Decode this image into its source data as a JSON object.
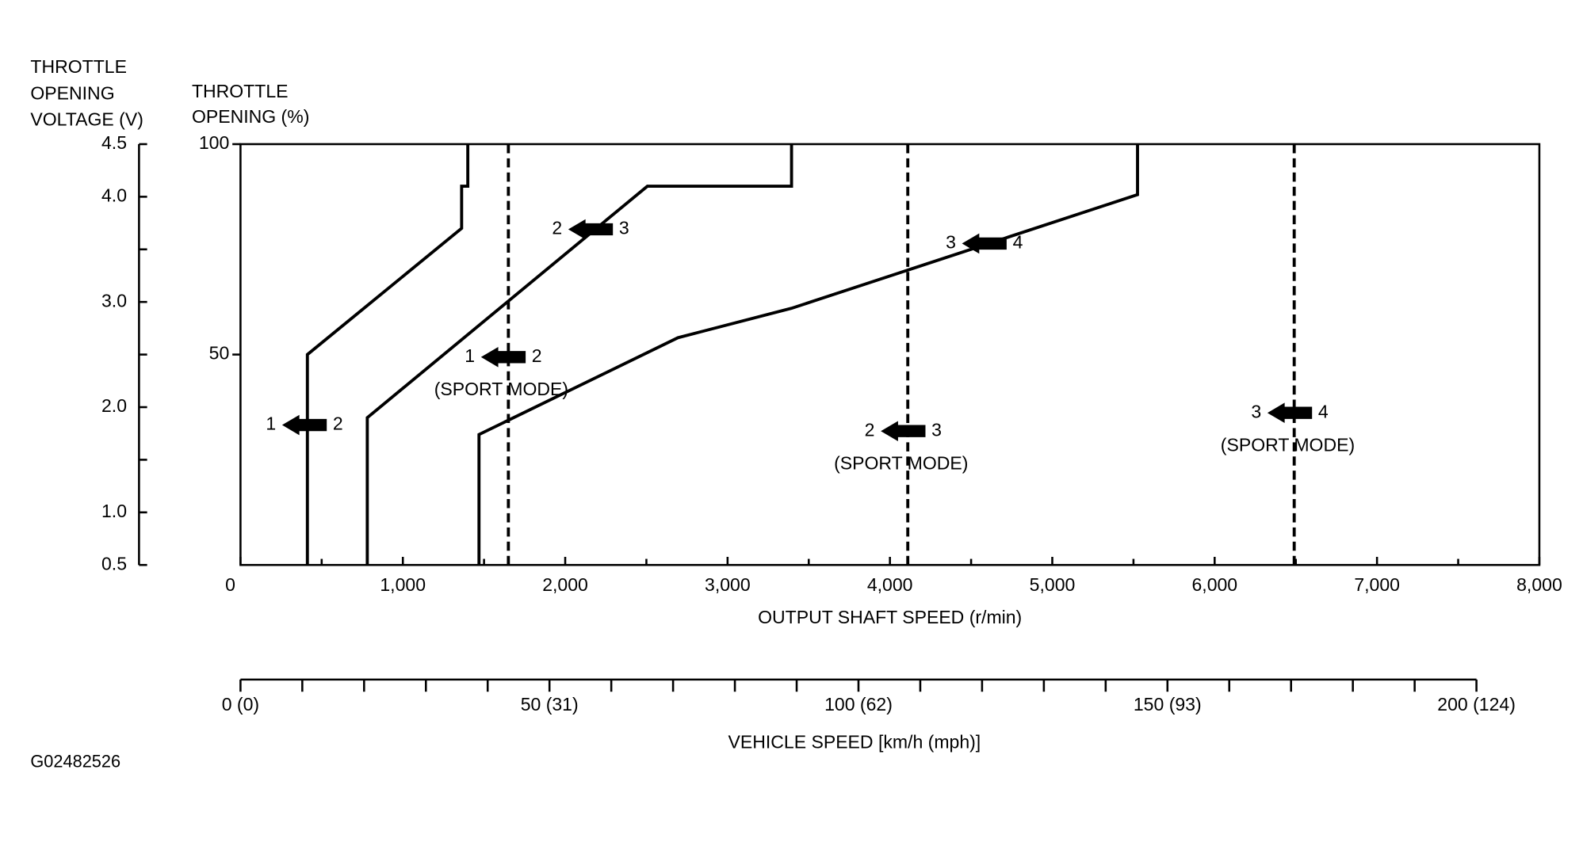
{
  "chart_data": {
    "type": "line",
    "y_title_left": [
      "THROTTLE",
      "OPENING",
      "VOLTAGE (V)"
    ],
    "y_title": [
      "THROTTLE",
      "OPENING (%)"
    ],
    "x_title": "OUTPUT SHAFT SPEED (r/min)",
    "x2_title": "VEHICLE SPEED [km/h (mph)]",
    "figure_id": "G02482526",
    "xlim": [
      0,
      8000
    ],
    "xticks": [
      0,
      {
        "value": 1000,
        "label": "1,000"
      },
      {
        "value": 2000,
        "label": "2,000"
      },
      {
        "value": 3000,
        "label": "3,000"
      },
      {
        "value": 4000,
        "label": "4,000"
      },
      {
        "value": 5000,
        "label": "5,000"
      },
      {
        "value": 6000,
        "label": "6,000"
      },
      {
        "value": 7000,
        "label": "7,000"
      },
      {
        "value": 8000,
        "label": "8,000"
      }
    ],
    "xminorticks": [
      500,
      1500,
      2500,
      3500,
      4500,
      5500,
      6500,
      7500
    ],
    "ylim": [
      0,
      100
    ],
    "yticks": [
      50,
      100
    ],
    "vlim": [
      0.5,
      4.5
    ],
    "vticks": [
      0.5,
      {
        "value": 1,
        "label": "1.0"
      },
      {
        "value": 2,
        "label": "2.0"
      },
      {
        "value": 3,
        "label": "3.0"
      },
      {
        "value": 4,
        "label": "4.0"
      },
      4.5
    ],
    "vminorticks": [
      1.5,
      2.5,
      3.5
    ],
    "x2lim": [
      0,
      200
    ],
    "x2ticks": [
      {
        "value": 0,
        "label": "0 (0)"
      },
      {
        "value": 50,
        "label": "50 (31)"
      },
      {
        "value": 100,
        "label": "100 (62)"
      },
      {
        "value": 150,
        "label": "150 (93)"
      },
      {
        "value": 200,
        "label": "200 (124)"
      }
    ],
    "x2minorticks": [
      10,
      20,
      30,
      40,
      60,
      70,
      80,
      90,
      110,
      120,
      130,
      140,
      160,
      170,
      180,
      190
    ],
    "series": [
      {
        "from": "1",
        "to": "2",
        "color": "#000000",
        "style": "solid",
        "x": [
          412,
          412,
          1362,
          1362,
          1400,
          1400
        ],
        "values": [
          0,
          50,
          80,
          90,
          90,
          100
        ]
      },
      {
        "from": "2",
        "to": "3",
        "color": "#000000",
        "style": "solid",
        "x": [
          781,
          781,
          2506,
          3394,
          3394
        ],
        "values": [
          0,
          35,
          90,
          90,
          100
        ]
      },
      {
        "from": "3",
        "to": "4",
        "color": "#000000",
        "style": "solid",
        "x": [
          1469,
          1469,
          2694,
          3394,
          5525,
          5525
        ],
        "values": [
          0,
          31,
          54,
          61,
          88,
          100
        ]
      },
      {
        "from": "1",
        "to": "2",
        "note": "(SPORT MODE)",
        "color": "#000000",
        "style": "dashed",
        "x": [
          1650,
          1650
        ],
        "values": [
          0,
          100
        ]
      },
      {
        "from": "2",
        "to": "3",
        "note": "(SPORT MODE)",
        "color": "#000000",
        "style": "dashed",
        "x": [
          4110,
          4110
        ],
        "values": [
          0,
          100
        ]
      },
      {
        "from": "3",
        "to": "4",
        "note": "(SPORT MODE)",
        "color": "#000000",
        "style": "dashed",
        "x": [
          6490,
          6490
        ],
        "values": [
          0,
          100
        ]
      }
    ]
  }
}
